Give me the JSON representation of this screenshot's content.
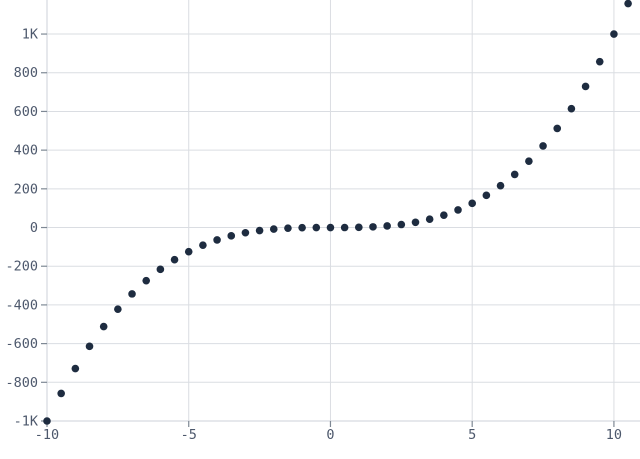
{
  "chart_data": {
    "type": "scatter",
    "title": "",
    "xlabel": "",
    "ylabel": "",
    "x": [
      -10,
      -9.5,
      -9,
      -8.5,
      -8,
      -7.5,
      -7,
      -6.5,
      -6,
      -5.5,
      -5,
      -4.5,
      -4,
      -3.5,
      -3,
      -2.5,
      -2,
      -1.5,
      -1,
      -0.5,
      0,
      0.5,
      1,
      1.5,
      2,
      2.5,
      3,
      3.5,
      4,
      4.5,
      5,
      5.5,
      6,
      6.5,
      7,
      7.5,
      8,
      8.5,
      9,
      9.5,
      10,
      10.5
    ],
    "y": [
      -1000,
      -857.375,
      -729,
      -614.125,
      -512,
      -421.875,
      -343,
      -274.625,
      -216,
      -166.375,
      -125,
      -91.125,
      -64,
      -42.875,
      -27,
      -15.625,
      -8,
      -3.375,
      -1,
      -0.125,
      0,
      0.125,
      1,
      3.375,
      8,
      15.625,
      27,
      42.875,
      64,
      91.125,
      125,
      166.375,
      216,
      274.625,
      343,
      421.875,
      512,
      614.125,
      729,
      857.375,
      1000,
      1157.625
    ],
    "function": "y = x^3",
    "x_ticks": [
      {
        "value": -10,
        "label": "-10"
      },
      {
        "value": -5,
        "label": "-5"
      },
      {
        "value": 0,
        "label": "0"
      },
      {
        "value": 5,
        "label": "5"
      },
      {
        "value": 10,
        "label": "10"
      }
    ],
    "y_ticks": [
      {
        "value": 1000,
        "label": "1K"
      },
      {
        "value": 800,
        "label": "800"
      },
      {
        "value": 600,
        "label": "600"
      },
      {
        "value": 400,
        "label": "400"
      },
      {
        "value": 200,
        "label": "200"
      },
      {
        "value": 0,
        "label": "0"
      },
      {
        "value": -200,
        "label": "-200"
      },
      {
        "value": -400,
        "label": "-400"
      },
      {
        "value": -600,
        "label": "-600"
      },
      {
        "value": -800,
        "label": "-800"
      },
      {
        "value": -1000,
        "label": "-1K"
      }
    ],
    "xlim": [
      -10,
      10.92
    ],
    "ylim": [
      -1000,
      1176
    ],
    "grid": true,
    "legend": false,
    "colors": {
      "background": "#ffffff",
      "point": "#1e2c40",
      "grid": "#dadde2",
      "axis": "#ccd1d8",
      "tick": "#7e8894",
      "label": "#4d586c"
    }
  }
}
